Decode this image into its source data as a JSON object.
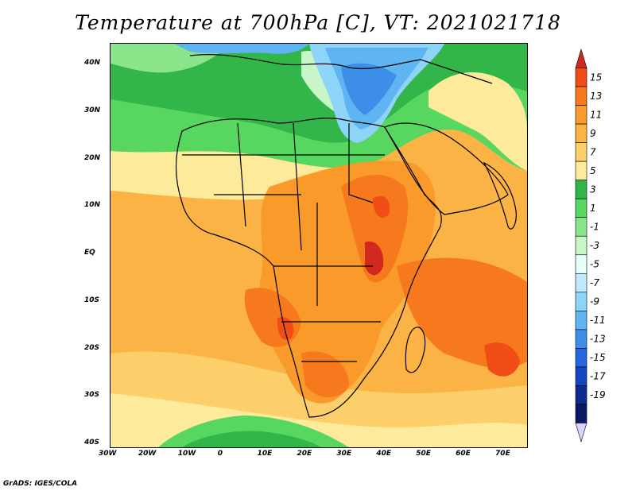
{
  "title": "Temperature at 700hPa [C], VT: 2021021718",
  "credit": "GrADS: IGES/COLA",
  "map": {
    "lon_labels": [
      "30W",
      "20W",
      "10W",
      "0",
      "10E",
      "20E",
      "30E",
      "40E",
      "50E",
      "60E",
      "70E"
    ],
    "lat_labels": [
      "40N",
      "30N",
      "20N",
      "10N",
      "EQ",
      "10S",
      "20S",
      "30S",
      "40S"
    ],
    "lon_range": [
      -30,
      75
    ],
    "lat_range": [
      -40,
      45
    ]
  },
  "colorbar": {
    "labels": [
      "15",
      "13",
      "11",
      "9",
      "7",
      "5",
      "3",
      "1",
      "-1",
      "-3",
      "-5",
      "-7",
      "-9",
      "-11",
      "-13",
      "-15",
      "-17",
      "-19"
    ],
    "colors": [
      "#d2291e",
      "#f14d16",
      "#f6791d",
      "#fa9a2a",
      "#fbb345",
      "#fdcf6a",
      "#fdeb9b",
      "#33b649",
      "#57d760",
      "#8ae58a",
      "#c9f6c8",
      "#e6fff7",
      "#bfe9ff",
      "#8ed3f8",
      "#5fb5f1",
      "#3d8ee8",
      "#2366df",
      "#1547c3",
      "#0d2c8f",
      "#0c1766"
    ],
    "bottom_cap_color": "#d9d3ff"
  }
}
